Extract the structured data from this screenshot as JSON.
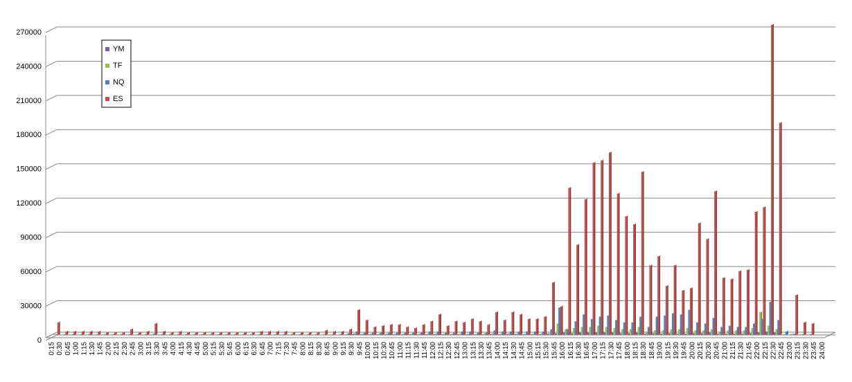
{
  "chart_data": {
    "type": "bar3d",
    "categories": [
      "0:15",
      "0:30",
      "0:45",
      "1:00",
      "1:15",
      "1:30",
      "1:45",
      "2:00",
      "2:15",
      "2:30",
      "2:45",
      "3:00",
      "3:15",
      "3:30",
      "3:45",
      "4:00",
      "4:15",
      "4:30",
      "4:45",
      "5:00",
      "5:15",
      "5:30",
      "5:45",
      "6:00",
      "6:15",
      "6:30",
      "6:45",
      "7:00",
      "7:15",
      "7:30",
      "7:45",
      "8:00",
      "8:15",
      "8:30",
      "8:45",
      "9:00",
      "9:15",
      "9:30",
      "9:45",
      "10:00",
      "10:15",
      "10:30",
      "10:45",
      "11:00",
      "11:15",
      "11:30",
      "11:45",
      "12:00",
      "12:15",
      "12:30",
      "12:45",
      "13:00",
      "13:15",
      "13:30",
      "13:45",
      "14:00",
      "14:15",
      "14:30",
      "14:45",
      "15:00",
      "15:15",
      "15:30",
      "15:45",
      "16:00",
      "16:15",
      "16:30",
      "16:45",
      "17:00",
      "17:15",
      "17:30",
      "17:45",
      "18:00",
      "18:15",
      "18:30",
      "18:45",
      "19:00",
      "19:15",
      "19:30",
      "19:45",
      "20:00",
      "20:15",
      "20:30",
      "20:45",
      "21:00",
      "21:15",
      "21:30",
      "21:45",
      "22:00",
      "22:15",
      "22:30",
      "22:45",
      "23:00",
      "23:15",
      "23:30",
      "23:45",
      "24:00"
    ],
    "series": [
      {
        "name": "YM",
        "color": "#7d5fa0",
        "values": [
          200,
          100,
          100,
          100,
          100,
          100,
          100,
          100,
          100,
          200,
          100,
          100,
          300,
          100,
          100,
          100,
          100,
          100,
          100,
          100,
          100,
          100,
          100,
          100,
          100,
          100,
          100,
          100,
          100,
          100,
          100,
          100,
          100,
          100,
          100,
          100,
          300,
          800,
          500,
          500,
          500,
          500,
          500,
          500,
          500,
          500,
          500,
          600,
          500,
          500,
          500,
          500,
          500,
          500,
          800,
          500,
          800,
          700,
          500,
          500,
          600,
          1000,
          1500,
          2000,
          1500,
          2000,
          2000,
          2000,
          2000,
          2000,
          1500,
          1500,
          2000,
          1000,
          1500,
          1000,
          1500,
          1000,
          1000,
          1500,
          1500,
          2000,
          1000,
          1000,
          1000,
          1000,
          1500,
          2000,
          3000,
          2000,
          300,
          500,
          200,
          200,
          0,
          0
        ]
      },
      {
        "name": "TF",
        "color": "#9bbb59",
        "values": [
          300,
          200,
          200,
          200,
          200,
          200,
          200,
          200,
          200,
          300,
          200,
          200,
          400,
          200,
          200,
          200,
          200,
          200,
          200,
          200,
          200,
          200,
          200,
          200,
          200,
          200,
          200,
          200,
          200,
          200,
          200,
          200,
          200,
          200,
          200,
          200,
          500,
          1000,
          1000,
          1000,
          1000,
          1000,
          1000,
          1000,
          1000,
          1000,
          1000,
          1000,
          1000,
          1000,
          1000,
          1000,
          1000,
          1000,
          1000,
          1000,
          1000,
          1000,
          1000,
          1000,
          1000,
          1000,
          10000,
          5000,
          6000,
          7000,
          7000,
          8000,
          7000,
          6000,
          5000,
          5000,
          7000,
          3000,
          4000,
          4000,
          5000,
          5000,
          6000,
          4000,
          4000,
          5000,
          3000,
          4000,
          4000,
          4000,
          6000,
          20000,
          8000,
          5000,
          500,
          500,
          200,
          200,
          0,
          0
        ]
      },
      {
        "name": "NQ",
        "color": "#4f81bd",
        "values": [
          500,
          500,
          500,
          500,
          500,
          500,
          500,
          500,
          500,
          500,
          500,
          500,
          1000,
          500,
          500,
          500,
          500,
          500,
          500,
          500,
          500,
          500,
          500,
          500,
          500,
          500,
          500,
          500,
          500,
          500,
          500,
          500,
          500,
          500,
          500,
          500,
          1500,
          3000,
          2000,
          2000,
          2000,
          2000,
          2000,
          2000,
          2000,
          2000,
          3000,
          3000,
          2000,
          2000,
          3000,
          3000,
          2000,
          2000,
          4000,
          3000,
          3000,
          3000,
          3000,
          3000,
          3000,
          5000,
          24000,
          5000,
          12000,
          18000,
          14000,
          16000,
          17000,
          13000,
          11000,
          11000,
          16000,
          7000,
          16000,
          17000,
          19000,
          18000,
          22000,
          11000,
          10000,
          15000,
          7000,
          8000,
          7000,
          7000,
          10000,
          14000,
          29000,
          13000,
          3000,
          1000,
          500,
          500,
          0,
          0
        ]
      },
      {
        "name": "ES",
        "color": "#c0504d",
        "values": [
          11000,
          3000,
          3000,
          3000,
          3000,
          3000,
          2000,
          2000,
          2000,
          5000,
          2000,
          3000,
          10000,
          3000,
          2000,
          3000,
          2000,
          2000,
          2000,
          2000,
          2000,
          2000,
          2000,
          2000,
          2000,
          3000,
          3000,
          3000,
          3000,
          2000,
          2000,
          2000,
          2000,
          4000,
          3000,
          3000,
          5000,
          22000,
          13000,
          7000,
          8000,
          9000,
          9000,
          7000,
          6000,
          9000,
          12000,
          18000,
          8000,
          12000,
          11000,
          14000,
          12000,
          9000,
          20000,
          13000,
          20000,
          18000,
          14000,
          14000,
          16000,
          46000,
          25000,
          129000,
          79000,
          119000,
          151000,
          153000,
          160000,
          124000,
          104000,
          97000,
          143000,
          61000,
          69000,
          43000,
          61000,
          39000,
          41000,
          98000,
          84000,
          126000,
          50000,
          49000,
          56000,
          57000,
          108000,
          112000,
          272000,
          186000,
          0,
          35000,
          11000,
          10000,
          0,
          0
        ]
      }
    ],
    "ylim": [
      0,
      270000
    ],
    "yticks": [
      0,
      30000,
      60000,
      90000,
      120000,
      150000,
      180000,
      210000,
      240000,
      270000
    ],
    "grid": true
  }
}
